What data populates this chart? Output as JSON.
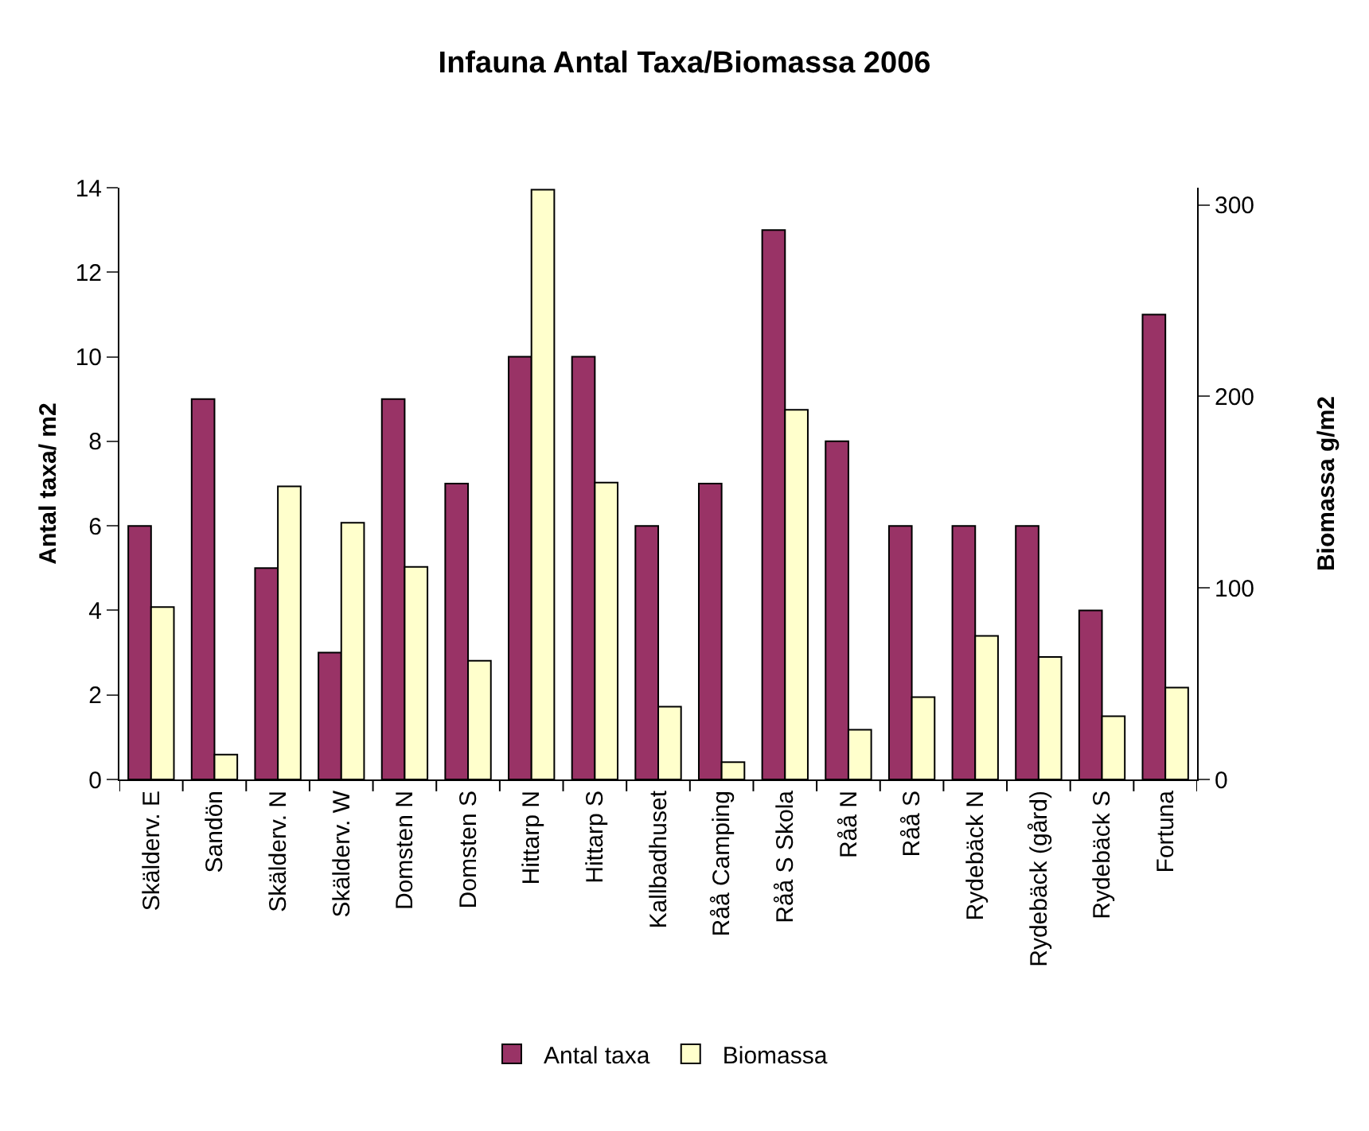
{
  "chart_data": {
    "type": "bar",
    "title": "Infauna Antal Taxa/Biomassa 2006",
    "ylabel": "Antal taxa/ m2",
    "y2label": "Biomassa g/m2",
    "categories": [
      "Skälderv. E",
      "Sandön",
      "Skälderv. N",
      "Skälderv. W",
      "Domsten N",
      "Domsten S",
      "Hittarp N",
      "Hittarp S",
      "Kallbadhuset",
      "Råå Camping",
      "Råå S Skola",
      "Råå N",
      "Råå S",
      "Rydebäck N",
      "Rydebäck (gård)",
      "Rydebäck S",
      "Fortuna"
    ],
    "series": [
      {
        "name": "Antal taxa",
        "color": "#993366",
        "values": [
          6,
          9,
          5,
          3,
          9,
          7,
          10,
          10,
          6,
          7,
          13,
          8,
          6,
          6,
          6,
          4,
          11
        ]
      },
      {
        "name": "Biomassa",
        "color": "#ffffcc",
        "axis": "y2",
        "values": [
          90,
          13,
          153,
          134,
          111,
          62,
          308,
          155,
          38,
          9,
          193,
          26,
          43,
          75,
          64,
          33,
          48
        ]
      }
    ],
    "ylim": [
      0,
      14
    ],
    "yticks": [
      0,
      2,
      4,
      6,
      8,
      10,
      12,
      14
    ],
    "y2lim": [
      0,
      309
    ],
    "y2ticks": [
      0,
      100,
      200,
      300
    ],
    "grid": false,
    "legend": "bottom"
  }
}
